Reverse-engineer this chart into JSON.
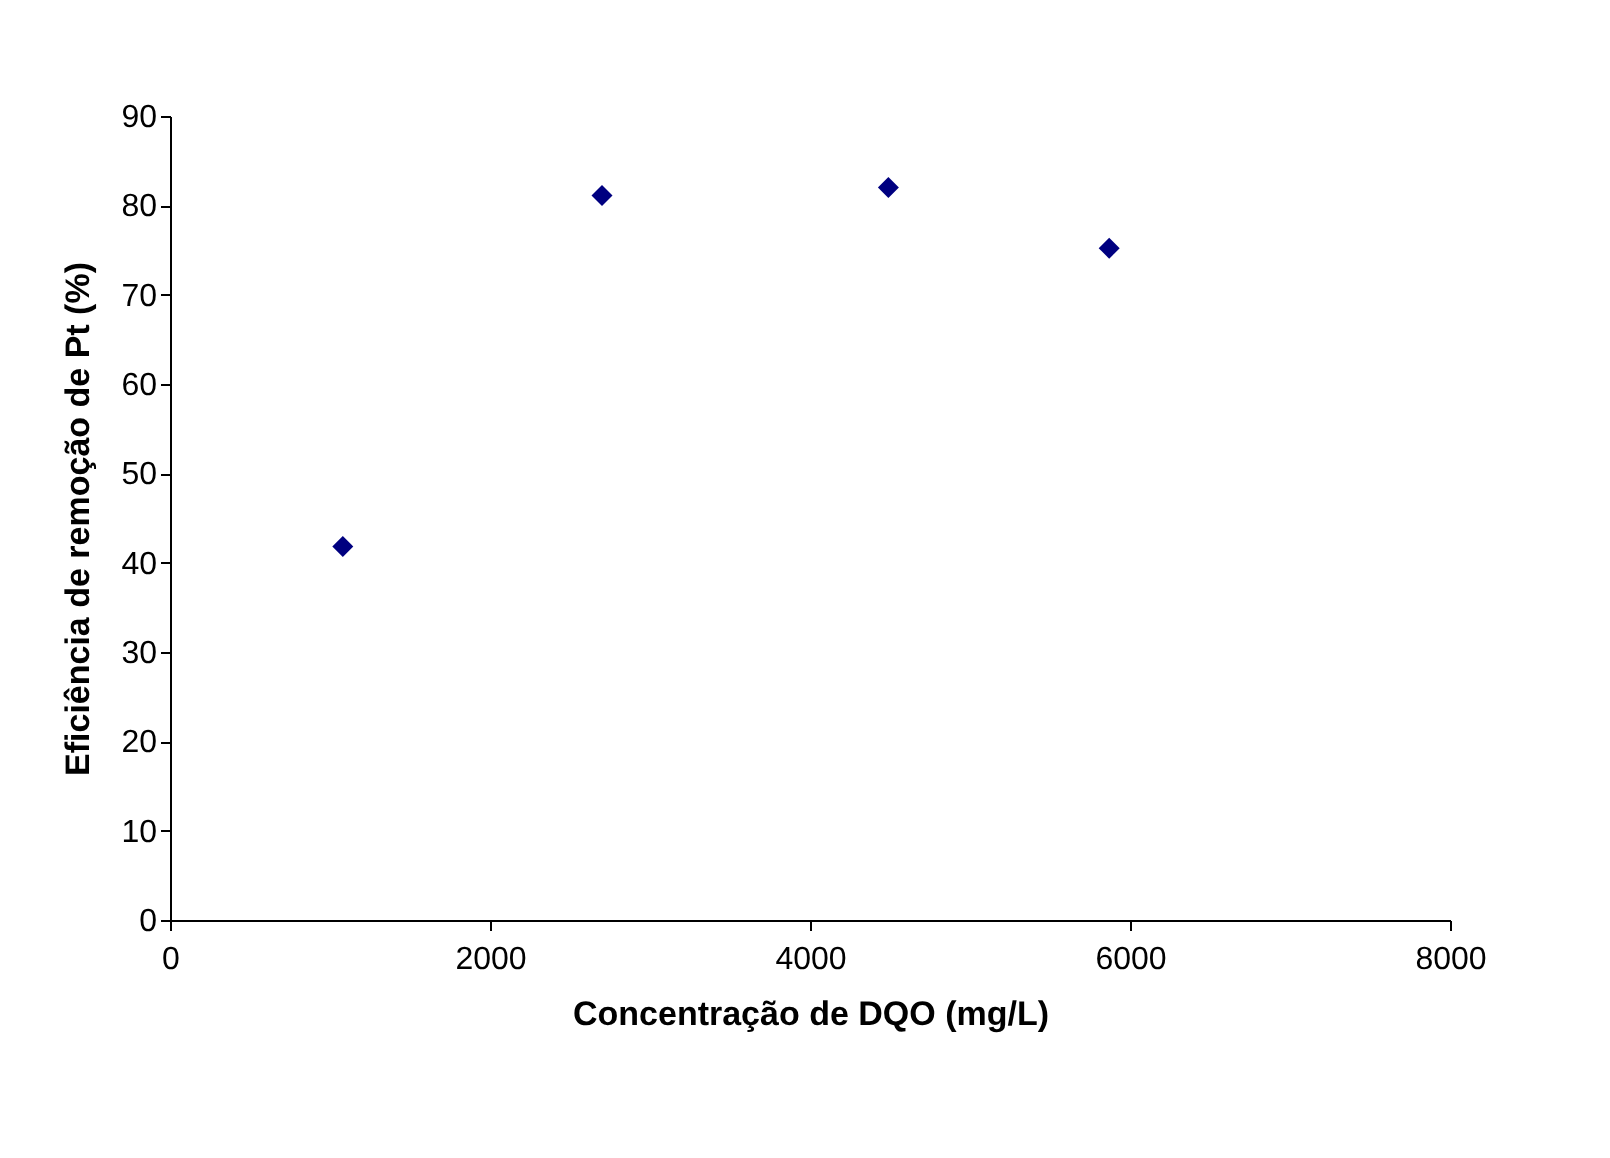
{
  "chart_data": {
    "type": "scatter",
    "xlabel": "Concentração de DQO (mg/L)",
    "ylabel": "Eficiência de remoção de Pt (%)",
    "x": [
      1080,
      2700,
      4490,
      5870
    ],
    "series": [
      {
        "color": "#000080",
        "values": [
          41.8,
          81.1,
          82.0,
          75.2
        ]
      }
    ],
    "marker": "diamond",
    "xlim": [
      0,
      8000
    ],
    "xticks": [
      0,
      2000,
      4000,
      6000,
      8000
    ],
    "ylim": [
      0,
      90
    ],
    "yticks": [
      0,
      10,
      20,
      30,
      40,
      50,
      60,
      70,
      80,
      90
    ],
    "grid": false
  }
}
